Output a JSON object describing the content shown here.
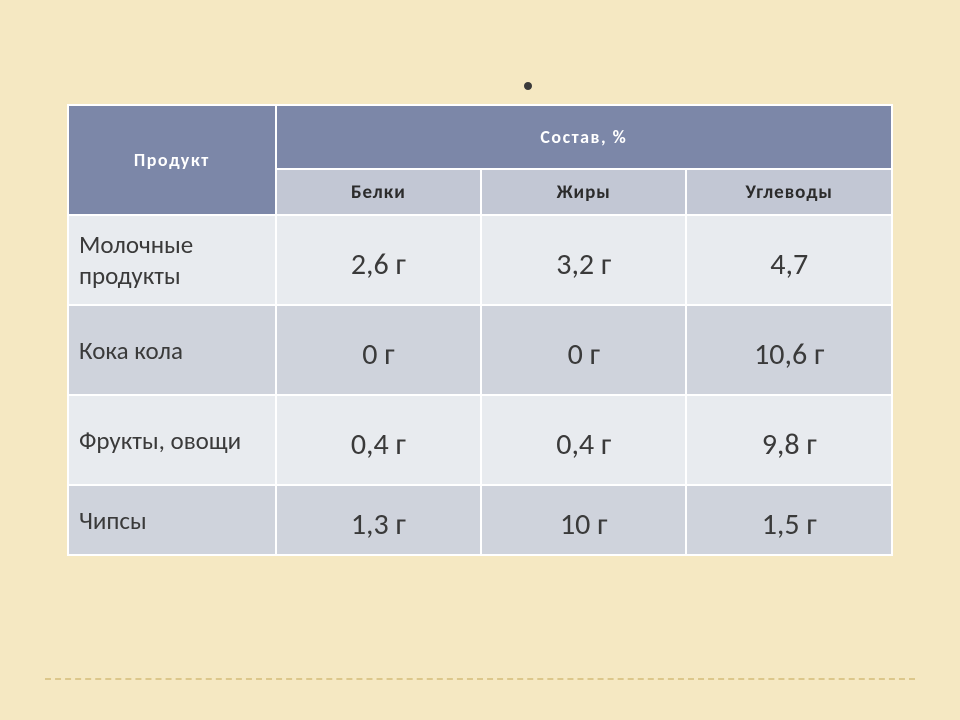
{
  "decor": {
    "dot_color": "#3a3a3a"
  },
  "table": {
    "header": {
      "product": "Продукт",
      "composition": "Состав,  %",
      "sub": {
        "proteins": "Белки",
        "fats": "Жиры",
        "carbs": "Углеводы"
      }
    },
    "rows": [
      {
        "product": "Молочные продукты",
        "proteins": "2,6 г",
        "fats": "3,2 г",
        "carbs": "4,7"
      },
      {
        "product": " Кока кола",
        "proteins": "0 г",
        "fats": "0 г",
        "carbs": "10,6 г"
      },
      {
        "product": "Фрукты, овощи",
        "proteins": "0,4 г",
        "fats": "0,4 г",
        "carbs": "9,8 г"
      },
      {
        "product": "Чипсы",
        "proteins": "1,3 г",
        "fats": "10 г",
        "carbs": "1,5 г"
      }
    ],
    "zebra_colors": {
      "light": "#e8ebef",
      "dark": "#cfd3dc"
    },
    "header_bg": "#7c87a8",
    "subheader_bg": "#c2c7d4"
  }
}
